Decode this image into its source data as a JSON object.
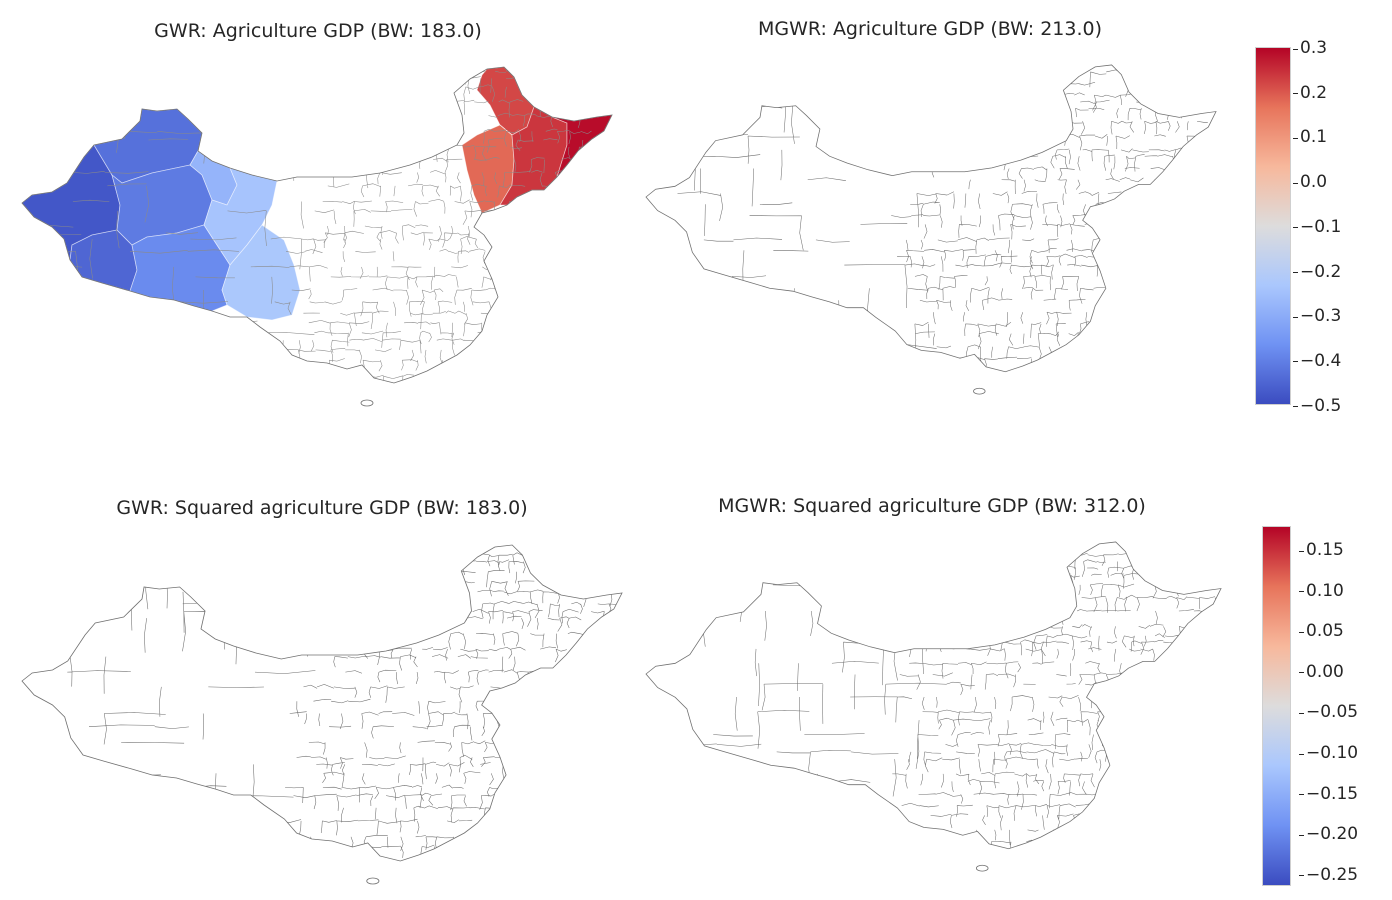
{
  "figure": {
    "panels": [
      {
        "id": "p1",
        "title": "GWR: Agriculture GDP (BW: 183.0)",
        "shaded": true
      },
      {
        "id": "p2",
        "title": "MGWR: Agriculture GDP (BW: 213.0)",
        "shaded": false
      },
      {
        "id": "p3",
        "title": "GWR: Squared agriculture GDP (BW: 183.0)",
        "shaded": false
      },
      {
        "id": "p4",
        "title": "MGWR: Squared agriculture GDP (BW: 312.0)",
        "shaded": false
      }
    ],
    "colorbars": [
      {
        "id": "cb1",
        "min": -0.5,
        "max": 0.3,
        "ticks": [
          "0.3",
          "0.2",
          "0.1",
          "0.0",
          "−0.1",
          "−0.2",
          "−0.3",
          "−0.4",
          "−0.5"
        ]
      },
      {
        "id": "cb2",
        "min": -0.27,
        "max": 0.18,
        "ticks": [
          "0.15",
          "0.10",
          "0.05",
          "0.00",
          "−0.05",
          "−0.10",
          "−0.15",
          "−0.20",
          "−0.25"
        ]
      }
    ],
    "colormap": [
      "#3b4cc0",
      "#6f92f3",
      "#aac7fd",
      "#dddcdc",
      "#f7b89c",
      "#e7745b",
      "#b40426"
    ],
    "region_values": {
      "northwest_far_west": -0.48,
      "northwest_south_west": -0.45,
      "northwest_upper": -0.43,
      "northwest_central": -0.41,
      "northwest_south_mid": -0.38,
      "northwest_center_east": -0.28,
      "northwest_east": -0.24,
      "northwest_southeast": -0.23,
      "northeast_west": 0.18,
      "northeast_north": 0.22,
      "northeast_central": 0.24,
      "northeast_east": 0.29
    }
  },
  "chart_data": [
    {
      "type": "map",
      "title": "GWR: Agriculture GDP (BW: 183.0)",
      "colorbar_range": [
        -0.5,
        0.3
      ],
      "note_regions": "west blue (approx -0.5 to -0.2), northeast red (approx 0.15 to 0.3), rest unshaded"
    },
    {
      "type": "map",
      "title": "MGWR: Agriculture GDP (BW: 213.0)",
      "colorbar_range": [
        -0.5,
        0.3
      ]
    },
    {
      "type": "map",
      "title": "GWR: Squared agriculture GDP (BW: 183.0)",
      "colorbar_range": [
        -0.27,
        0.18
      ]
    },
    {
      "type": "map",
      "title": "MGWR: Squared agriculture GDP (BW: 312.0)",
      "colorbar_range": [
        -0.27,
        0.18
      ]
    }
  ]
}
